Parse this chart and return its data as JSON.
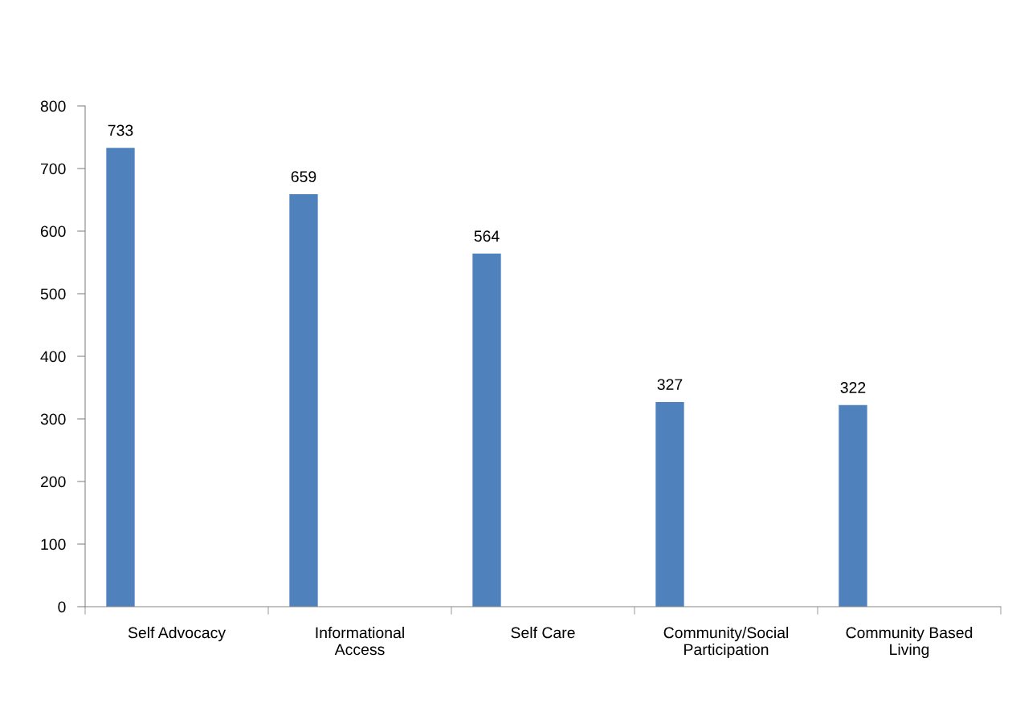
{
  "chart_data": {
    "type": "bar",
    "categories": [
      "Self Advocacy",
      "Informational Access",
      "Self Care",
      "Community/Social Participation",
      "Community Based Living"
    ],
    "values": [
      733,
      659,
      564,
      327,
      322
    ],
    "color": "#4f81bd",
    "ylim": [
      0,
      800
    ],
    "yticks": [
      0,
      100,
      200,
      300,
      400,
      500,
      600,
      700,
      800
    ],
    "data_labels": true,
    "grid": false,
    "legend": false
  }
}
